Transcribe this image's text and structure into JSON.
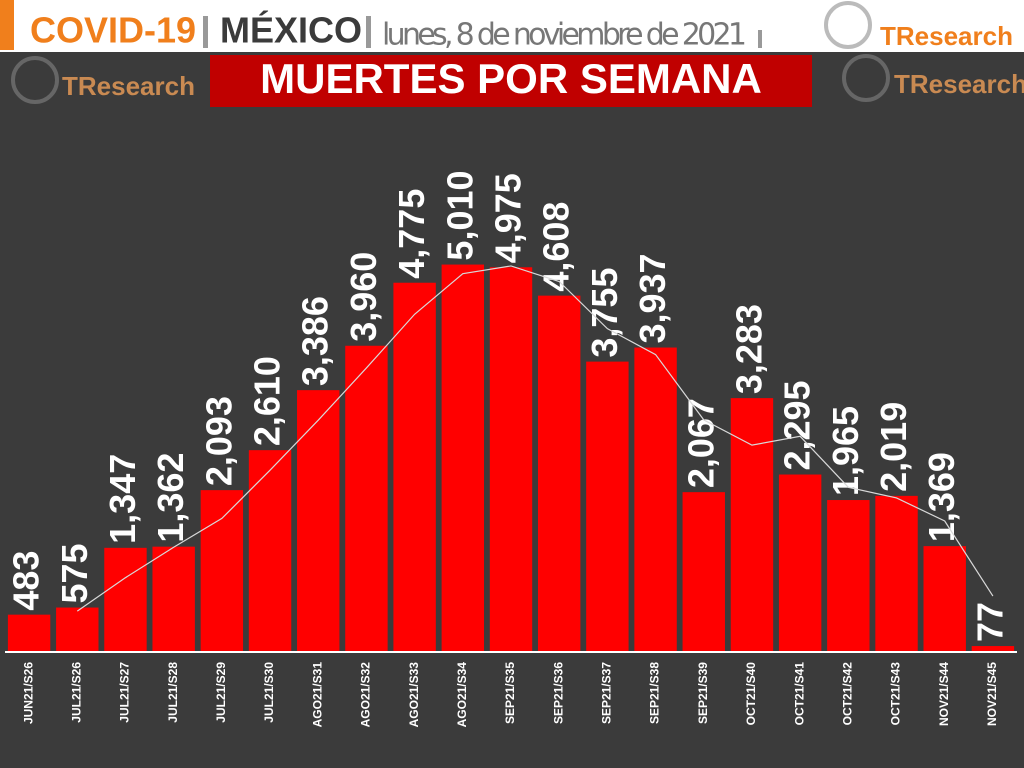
{
  "header": {
    "topic": "COVID-19",
    "country": "MÉXICO",
    "date": "lunes, 8 de noviembre de 2021",
    "brand": "TResearch"
  },
  "chart_data": {
    "type": "bar",
    "title": "MUERTES POR SEMANA",
    "categories": [
      "JUN21/S26",
      "JUL21/S26",
      "JUL21/S27",
      "JUL21/S28",
      "JUL21/S29",
      "JUL21/S30",
      "AGO21/S31",
      "AGO21/S32",
      "AGO21/S33",
      "AGO21/S34",
      "SEP21/S35",
      "SEP21/S36",
      "SEP21/S37",
      "SEP21/S38",
      "SEP21/S39",
      "OCT21/S40",
      "OCT21/S41",
      "OCT21/S42",
      "OCT21/S43",
      "NOV21/S44",
      "NOV21/S45"
    ],
    "values": [
      483,
      575,
      1347,
      1362,
      2093,
      2610,
      3386,
      3960,
      4775,
      5010,
      4975,
      4608,
      3755,
      3937,
      2067,
      3283,
      2295,
      1965,
      2019,
      1369,
      77
    ],
    "value_labels": [
      "483",
      "575",
      "1,347",
      "1,362",
      "2,093",
      "2,610",
      "3,386",
      "3,960",
      "4,775",
      "5,010",
      "4,975",
      "4,608",
      "3,755",
      "3,937",
      "2,067",
      "3,283",
      "2,295",
      "1,965",
      "2,019",
      "1,369",
      "77"
    ],
    "color": "#ff0000",
    "trend": {
      "color": "#d9d9d9",
      "values": [
        null,
        529,
        961,
        1354,
        1727,
        2351,
        2998,
        3673,
        4367,
        4892,
        4992,
        4791,
        4181,
        3846,
        3002,
        2675,
        2789,
        2130,
        1992,
        1694,
        723
      ]
    },
    "ylim": [
      0,
      6000
    ]
  }
}
